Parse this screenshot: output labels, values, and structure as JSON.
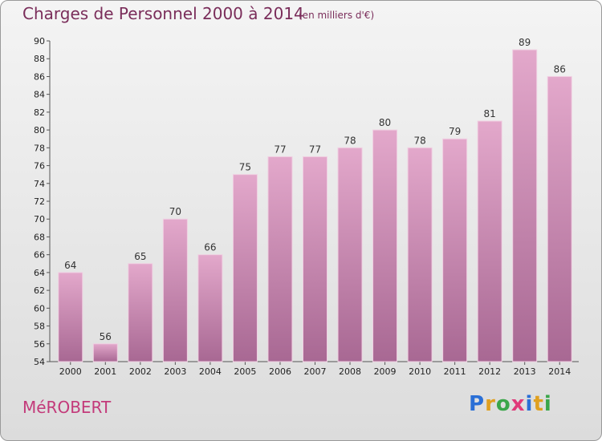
{
  "chart_data": {
    "type": "bar",
    "title": "Charges de Personnel 2000 à 2014",
    "subtitle": "(en milliers d'€)",
    "categories": [
      "2000",
      "2001",
      "2002",
      "2003",
      "2004",
      "2005",
      "2006",
      "2007",
      "2008",
      "2009",
      "2010",
      "2011",
      "2012",
      "2013",
      "2014"
    ],
    "values": [
      64,
      56,
      65,
      70,
      66,
      75,
      77,
      77,
      78,
      80,
      78,
      79,
      81,
      89,
      86
    ],
    "ylim": [
      54,
      90
    ],
    "yticks": [
      54,
      56,
      58,
      60,
      62,
      64,
      66,
      68,
      70,
      72,
      74,
      76,
      78,
      80,
      82,
      84,
      86,
      88,
      90
    ],
    "grid": false,
    "bar_color": "#d48ab4"
  },
  "footer": {
    "commune": "MéROBERT",
    "brand": [
      "P",
      "r",
      "o",
      "x",
      "i",
      "t",
      "i"
    ],
    "brand_colors": [
      "#2a6fd6",
      "#e0a020",
      "#3aa64a",
      "#e03a7a",
      "#2a6fd6",
      "#e0a020",
      "#3aa64a"
    ]
  }
}
